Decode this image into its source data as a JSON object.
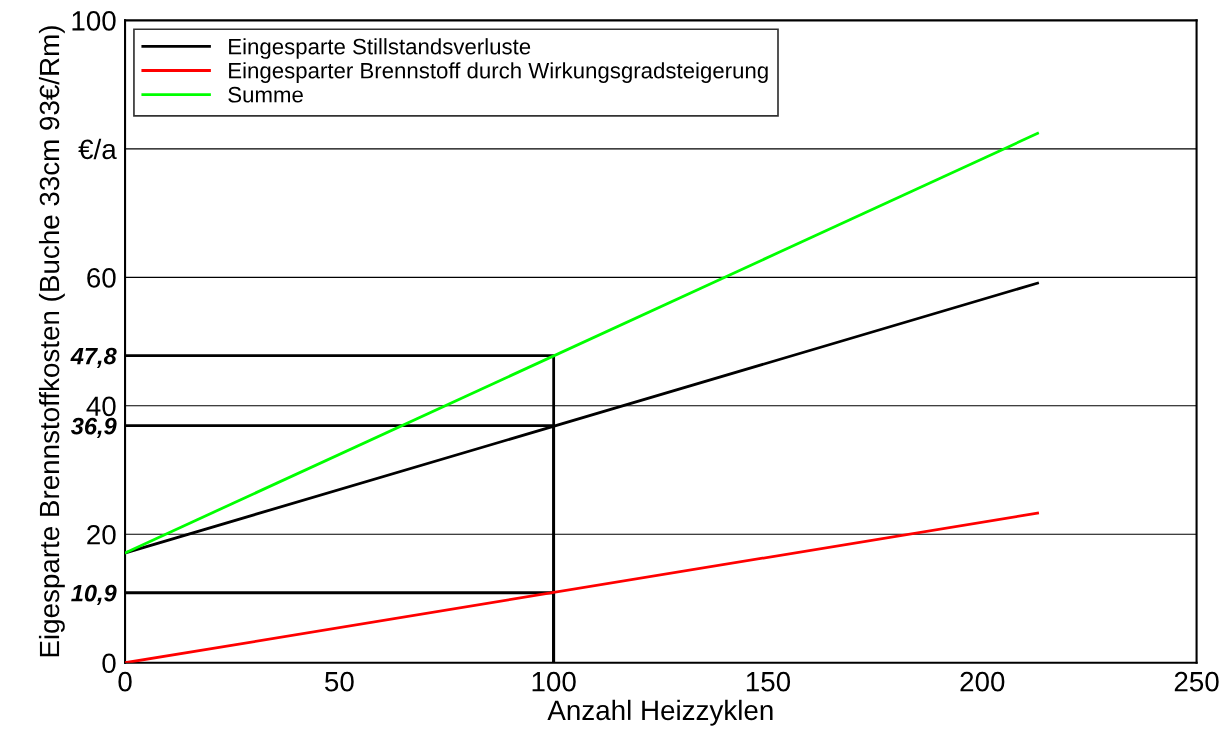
{
  "chart_data": {
    "type": "line",
    "xlabel": "Anzahl Heizzyklen",
    "ylabel": "Eigesparte Brennstoffkosten (Buche 33cm 93€/Rm)",
    "series": [
      {
        "name": "Eingesparte Stillstandsverluste",
        "color": "#000000",
        "x": [
          0,
          212.9
        ],
        "values": [
          17.1,
          59.1
        ]
      },
      {
        "name": "Eingesparter Brennstoff durch Wirkungsgradsteigerung",
        "color": "#ff0000",
        "x": [
          0,
          212.9
        ],
        "values": [
          0,
          23.3
        ]
      },
      {
        "name": "Summe",
        "color": "#00ff00",
        "x": [
          0,
          212.9
        ],
        "values": [
          17.1,
          82.4
        ]
      },
      {
        "color": "#000000",
        "x": [
          0,
          100,
          100
        ],
        "values": [
          47.8,
          47.8,
          0
        ]
      },
      {
        "color": "#000000",
        "x": [
          0,
          100,
          100
        ],
        "values": [
          36.9,
          36.9,
          0
        ]
      },
      {
        "color": "#000000",
        "x": [
          0,
          100,
          100
        ],
        "values": [
          10.9,
          10.9,
          0
        ]
      }
    ],
    "xlim": [
      0,
      250
    ],
    "xticks": [
      0,
      50,
      100,
      150,
      200,
      250
    ],
    "ylim": [
      0,
      100
    ],
    "yticks": [
      0,
      {
        "value": 10.9,
        "label": "10,9"
      },
      20,
      {
        "value": 36.9,
        "label": "36,9"
      },
      40,
      {
        "value": 47.8,
        "label": "47,8"
      },
      60,
      {
        "value": 80,
        "label": "€/a"
      },
      100
    ],
    "grid": "y",
    "legend": "top left",
    "marker": "none",
    "line_style": "solid"
  }
}
